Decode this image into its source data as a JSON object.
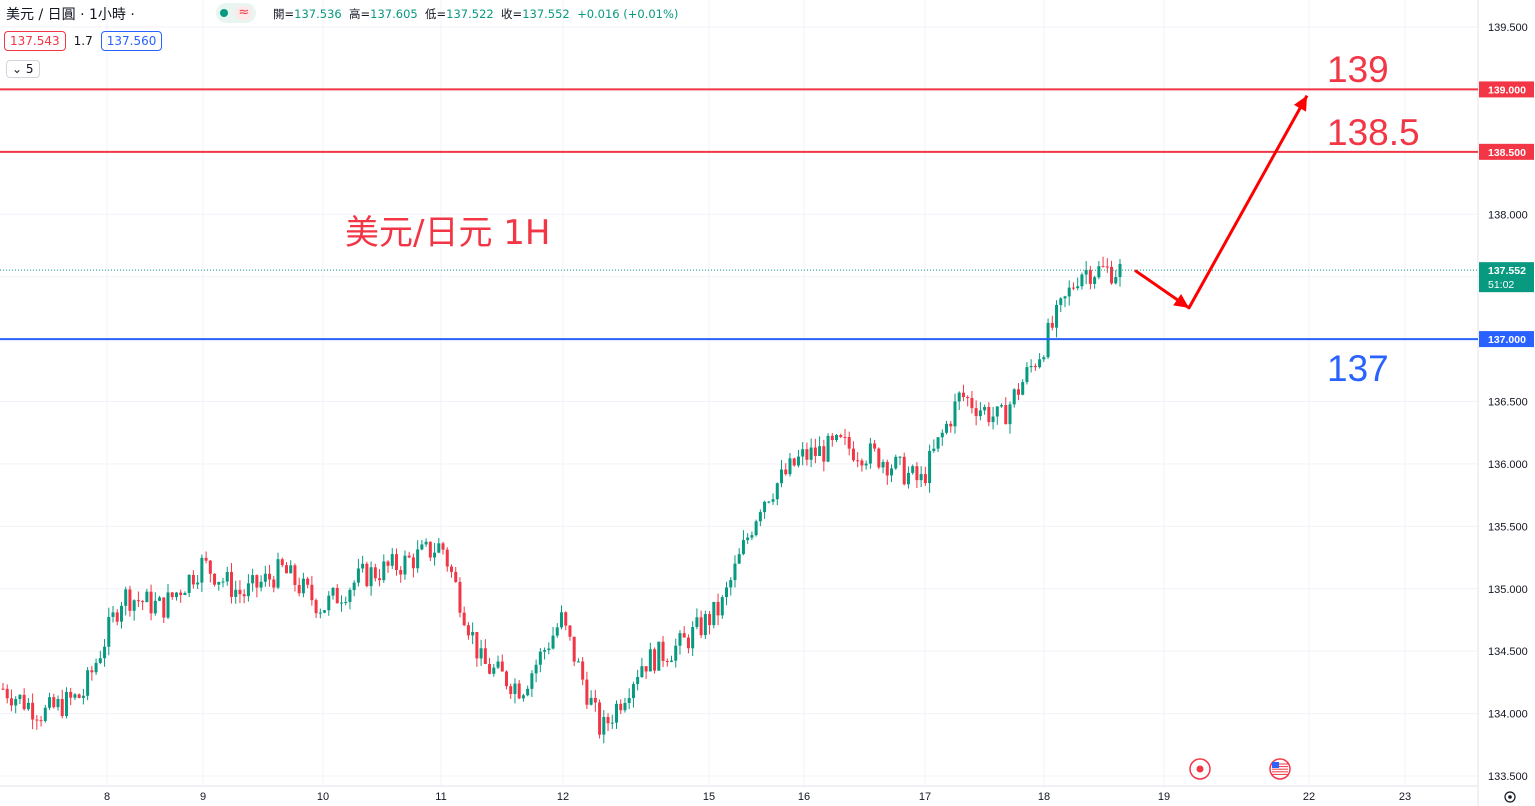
{
  "header": {
    "symbol_title": "美元 / 日圓 · 1小時 ·",
    "ohlc": [
      {
        "label": "開",
        "value": "137.536"
      },
      {
        "label": "高",
        "value": "137.605"
      },
      {
        "label": "低",
        "value": "137.522"
      },
      {
        "label": "收",
        "value": "137.552"
      }
    ],
    "change": "+0.016 (+0.01%)",
    "sell_price": "137.543",
    "spread": "1.7",
    "buy_price": "137.560",
    "indicator_toggle": "5",
    "market_status_icon": "market-open-dot-icon",
    "wave_icon": "≈"
  },
  "colors": {
    "up": "#089981",
    "down": "#f23645",
    "red_line": "#f23645",
    "blue_line": "#2962ff",
    "grid": "#f0f3fa"
  },
  "annotations": {
    "chart_label": "美元/日元 1H",
    "level_139": "139",
    "level_138_5": "138.5",
    "level_137": "137"
  },
  "price_tags": {
    "level_139": "139.000",
    "level_138_5": "138.500",
    "level_137": "137.000",
    "last_price": "137.552",
    "countdown": "51:02"
  },
  "chart_data": {
    "type": "candlestick",
    "title": "美元/日元 1H",
    "y_ticks": [
      "139.500",
      "139.000",
      "138.500",
      "138.000",
      "137.500",
      "137.000",
      "136.500",
      "136.000",
      "135.500",
      "135.000",
      "134.500",
      "134.000",
      "133.500"
    ],
    "y_range": [
      133.5,
      139.5
    ],
    "x_ticks": [
      "8",
      "9",
      "10",
      "11",
      "12",
      "15",
      "16",
      "17",
      "18",
      "19",
      "22",
      "23"
    ],
    "horizontal_levels": [
      {
        "price": 139.0,
        "color": "red"
      },
      {
        "price": 138.5,
        "color": "red"
      },
      {
        "price": 137.0,
        "color": "blue"
      }
    ],
    "last_price": 137.552,
    "projection": [
      {
        "stage": "start",
        "price": 137.55
      },
      {
        "stage": "dip",
        "price": 137.25
      },
      {
        "stage": "target",
        "price": 138.95
      }
    ],
    "close_path": [
      {
        "seg": 0,
        "close": 134.2
      },
      {
        "seg": 1,
        "close": 134.0
      },
      {
        "seg": 2,
        "close": 134.15
      },
      {
        "seg": 3,
        "close": 134.95
      },
      {
        "seg": 4,
        "close": 134.85
      },
      {
        "seg": 5,
        "close": 135.2
      },
      {
        "seg": 6,
        "close": 134.95
      },
      {
        "seg": 7,
        "close": 135.15
      },
      {
        "seg": 8,
        "close": 134.85
      },
      {
        "seg": 9,
        "close": 135.1
      },
      {
        "seg": 10,
        "close": 135.2
      },
      {
        "seg": 11,
        "close": 135.35
      },
      {
        "seg": 12,
        "close": 134.4
      },
      {
        "seg": 13,
        "close": 134.2
      },
      {
        "seg": 14,
        "close": 134.75
      },
      {
        "seg": 15,
        "close": 133.85
      },
      {
        "seg": 16,
        "close": 134.4
      },
      {
        "seg": 17,
        "close": 134.55
      },
      {
        "seg": 18,
        "close": 134.85
      },
      {
        "seg": 19,
        "close": 135.7
      },
      {
        "seg": 20,
        "close": 136.05
      },
      {
        "seg": 21,
        "close": 136.15
      },
      {
        "seg": 22,
        "close": 136.05
      },
      {
        "seg": 23,
        "close": 135.85
      },
      {
        "seg": 24,
        "close": 136.55
      },
      {
        "seg": 25,
        "close": 136.35
      },
      {
        "seg": 26,
        "close": 136.9
      },
      {
        "seg": 27,
        "close": 137.55
      },
      {
        "seg": 28,
        "close": 137.55
      }
    ]
  }
}
